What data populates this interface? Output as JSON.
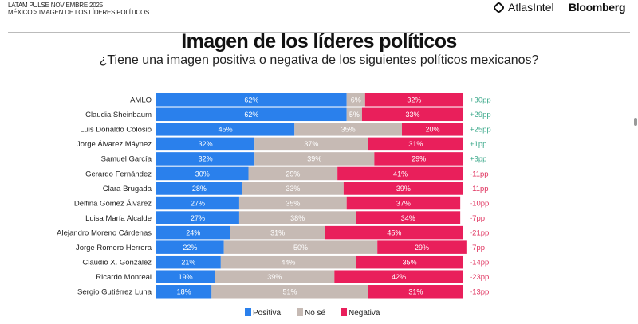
{
  "header": {
    "line1": "LATAM PULSE NOVIEMBRE 2025",
    "breadcrumb": "MÉXICO > IMAGEN DE LOS LÍDERES POLÍTICOS",
    "logos": [
      "AtlasIntel",
      "Bloomberg"
    ]
  },
  "chart_data": {
    "type": "bar",
    "stacked": true,
    "orientation": "horizontal",
    "title": "Imagen de los líderes políticos",
    "subtitle": "¿Tiene una imagen positiva o negativa de los siguientes políticos mexicanos?",
    "categories": [
      "AMLO",
      "Claudia Sheinbaum",
      "Luis Donaldo Colosio",
      "Jorge Álvarez Máynez",
      "Samuel García",
      "Gerardo Fernández",
      "Clara Brugada",
      "Delfina Gómez Álvarez",
      "Luisa María Alcalde",
      "Alejandro Moreno Cárdenas",
      "Jorge Romero Herrera",
      "Claudio X. González",
      "Ricardo Monreal",
      "Sergio Gutiérrez Luna"
    ],
    "series": [
      {
        "name": "Positiva",
        "color": "#2a80ec",
        "values": [
          62,
          62,
          45,
          32,
          32,
          30,
          28,
          27,
          27,
          24,
          22,
          21,
          19,
          18
        ]
      },
      {
        "name": "No sé",
        "color": "#c6bab4",
        "values": [
          6,
          5,
          35,
          37,
          39,
          29,
          33,
          35,
          38,
          31,
          50,
          44,
          39,
          51
        ]
      },
      {
        "name": "Negativa",
        "color": "#e91f5b",
        "values": [
          32,
          33,
          20,
          31,
          29,
          41,
          39,
          37,
          34,
          45,
          29,
          35,
          42,
          31
        ]
      }
    ],
    "net_labels": [
      "+30pp",
      "+29pp",
      "+25pp",
      "+1pp",
      "+3pp",
      "-11pp",
      "-11pp",
      "-10pp",
      "-7pp",
      "-21pp",
      "-7pp",
      "-14pp",
      "-23pp",
      "-13pp"
    ],
    "net_colors": {
      "positive": "#3aa88a",
      "negative": "#e0335f"
    },
    "xlim": [
      0,
      100
    ],
    "legend": "bottom-center"
  }
}
